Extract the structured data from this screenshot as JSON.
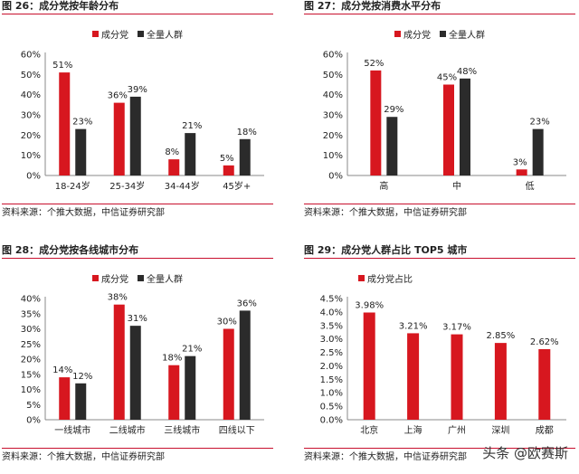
{
  "colors": {
    "party": "#d7171f",
    "all": "#2b2b2b",
    "rule": "#c8102e"
  },
  "watermark": "头条 @欧赛斯",
  "chart_data": [
    {
      "type": "bar",
      "title": "图 26：成分党按年龄分布",
      "source": "资料来源：个推大数据，中信证券研究部",
      "categories": [
        "18-24岁",
        "25-34岁",
        "34-44岁",
        "45岁+"
      ],
      "ylim": [
        0,
        60
      ],
      "yticks": [
        0,
        10,
        20,
        30,
        40,
        50,
        60
      ],
      "yfmt": "%",
      "series": [
        {
          "name": "成分党",
          "values": [
            51,
            36,
            8,
            5
          ]
        },
        {
          "name": "全量人群",
          "values": [
            23,
            39,
            21,
            18
          ]
        }
      ],
      "legend": "top-center",
      "grid": false
    },
    {
      "type": "bar",
      "title": "图 27：成分党按消费水平分布",
      "source": "资料来源：个推大数据，中信证券研究部",
      "categories": [
        "高",
        "中",
        "低"
      ],
      "ylim": [
        0,
        60
      ],
      "yticks": [
        0,
        10,
        20,
        30,
        40,
        50,
        60
      ],
      "yfmt": "%",
      "series": [
        {
          "name": "成分党",
          "values": [
            52,
            45,
            3
          ]
        },
        {
          "name": "全量人群",
          "values": [
            29,
            48,
            23
          ]
        }
      ],
      "legend": "top-center",
      "grid": false
    },
    {
      "type": "bar",
      "title": "图 28：成分党按各线城市分布",
      "source": "资料来源：个推大数据，中信证券研究部",
      "categories": [
        "一线城市",
        "二线城市",
        "三线城市",
        "四线以下"
      ],
      "ylim": [
        0,
        40
      ],
      "yticks": [
        0,
        5,
        10,
        15,
        20,
        25,
        30,
        35,
        40
      ],
      "yfmt": "%",
      "series": [
        {
          "name": "成分党",
          "values": [
            14,
            38,
            18,
            30
          ]
        },
        {
          "name": "全量人群",
          "values": [
            12,
            31,
            21,
            36
          ]
        }
      ],
      "legend": "top-center",
      "grid": false
    },
    {
      "type": "bar",
      "title": "图 29：成分党人群占比 TOP5 城市",
      "source": "资料来源：个推大数据，中信证券研究部",
      "categories": [
        "北京",
        "上海",
        "广州",
        "深圳",
        "成都"
      ],
      "ylim": [
        0,
        4.5
      ],
      "yticks": [
        0,
        0.5,
        1.0,
        1.5,
        2.0,
        2.5,
        3.0,
        3.5,
        4.0,
        4.5
      ],
      "yfmt": "%1",
      "series": [
        {
          "name": "成分党占比",
          "values": [
            3.98,
            3.21,
            3.17,
            2.85,
            2.62
          ],
          "labels": [
            "3.98%",
            "3.21%",
            "3.17%",
            "2.85%",
            "2.62%"
          ]
        }
      ],
      "legend": "top-left",
      "grid": false
    }
  ]
}
